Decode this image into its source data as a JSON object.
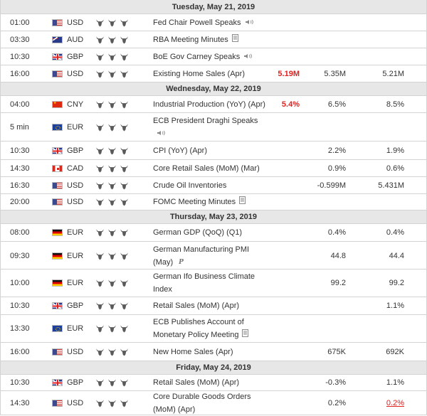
{
  "colors": {
    "up": "#2a9a24",
    "down": "#e0201e",
    "bull_on": "#5a5a5a",
    "bull_off": "#a8a8a8"
  },
  "days": [
    {
      "label": "Tuesday, May 21, 2019",
      "events": [
        {
          "time": "01:00",
          "flag": "us",
          "currency": "USD",
          "bulls": 3,
          "event": "Fed Chair Powell Speaks",
          "icon": "speaker-icon",
          "actual": "",
          "forecast": "",
          "previous": ""
        },
        {
          "time": "03:30",
          "flag": "au",
          "currency": "AUD",
          "bulls": 3,
          "event": "RBA Meeting Minutes",
          "icon": "document-icon",
          "actual": "",
          "forecast": "",
          "previous": ""
        },
        {
          "time": "10:30",
          "flag": "gb",
          "currency": "GBP",
          "bulls": 3,
          "event": "BoE Gov Carney Speaks",
          "icon": "speaker-icon",
          "actual": "",
          "forecast": "",
          "previous": ""
        },
        {
          "time": "16:00",
          "flag": "us",
          "currency": "USD",
          "bulls": 3,
          "event": "Existing Home Sales (Apr)",
          "icon": "",
          "actual": "5.19M",
          "actual_dir": "down",
          "forecast": "5.35M",
          "previous": "5.21M"
        }
      ]
    },
    {
      "label": "Wednesday, May 22, 2019",
      "events": [
        {
          "time": "04:00",
          "flag": "cn",
          "currency": "CNY",
          "bulls": 3,
          "event": "Industrial Production (YoY) (Apr)",
          "icon": "",
          "actual": "5.4%",
          "actual_dir": "down",
          "forecast": "6.5%",
          "previous": "8.5%"
        },
        {
          "time": "5 min",
          "flag": "eu",
          "currency": "EUR",
          "bulls": 3,
          "event": "ECB President Draghi Speaks",
          "icon": "speaker-icon",
          "actual": "",
          "forecast": "",
          "previous": ""
        },
        {
          "time": "10:30",
          "flag": "gb",
          "currency": "GBP",
          "bulls": 3,
          "event": "CPI (YoY) (Apr)",
          "icon": "",
          "actual": "",
          "forecast": "2.2%",
          "previous": "1.9%"
        },
        {
          "time": "14:30",
          "flag": "ca",
          "currency": "CAD",
          "bulls": 3,
          "event": "Core Retail Sales (MoM) (Mar)",
          "icon": "",
          "actual": "",
          "forecast": "0.9%",
          "previous": "0.6%"
        },
        {
          "time": "16:30",
          "flag": "us",
          "currency": "USD",
          "bulls": 3,
          "event": "Crude Oil Inventories",
          "icon": "",
          "actual": "",
          "forecast": "-0.599M",
          "previous": "5.431M"
        },
        {
          "time": "20:00",
          "flag": "us",
          "currency": "USD",
          "bulls": 3,
          "event": "FOMC Meeting Minutes",
          "icon": "document-icon",
          "actual": "",
          "forecast": "",
          "previous": ""
        }
      ]
    },
    {
      "label": "Thursday, May 23, 2019",
      "events": [
        {
          "time": "08:00",
          "flag": "de",
          "currency": "EUR",
          "bulls": 3,
          "event": "German GDP (QoQ) (Q1)",
          "icon": "",
          "actual": "",
          "forecast": "0.4%",
          "previous": "0.4%"
        },
        {
          "time": "09:30",
          "flag": "de",
          "currency": "EUR",
          "bulls": 3,
          "event": "German Manufacturing PMI (May)",
          "icon": "preliminary-icon",
          "icon_text": "P",
          "actual": "",
          "forecast": "44.8",
          "previous": "44.4"
        },
        {
          "time": "10:00",
          "flag": "de",
          "currency": "EUR",
          "bulls": 3,
          "event": "German Ifo Business Climate Index",
          "icon": "",
          "actual": "",
          "forecast": "99.2",
          "previous": "99.2"
        },
        {
          "time": "10:30",
          "flag": "gb",
          "currency": "GBP",
          "bulls": 3,
          "event": "Retail Sales (MoM) (Apr)",
          "icon": "",
          "actual": "",
          "forecast": "",
          "previous": "1.1%"
        },
        {
          "time": "13:30",
          "flag": "eu",
          "currency": "EUR",
          "bulls": 3,
          "event": "ECB Publishes Account of Monetary Policy Meeting",
          "icon": "document-icon",
          "actual": "",
          "forecast": "",
          "previous": ""
        },
        {
          "time": "16:00",
          "flag": "us",
          "currency": "USD",
          "bulls": 3,
          "event": "New Home Sales (Apr)",
          "icon": "",
          "actual": "",
          "forecast": "675K",
          "previous": "692K"
        }
      ]
    },
    {
      "label": "Friday, May 24, 2019",
      "events": [
        {
          "time": "10:30",
          "flag": "gb",
          "currency": "GBP",
          "bulls": 3,
          "event": "Retail Sales (MoM) (Apr)",
          "icon": "",
          "actual": "",
          "forecast": "-0.3%",
          "previous": "1.1%"
        },
        {
          "time": "14:30",
          "flag": "us",
          "currency": "USD",
          "bulls": 3,
          "event": "Core Durable Goods Orders (MoM) (Apr)",
          "icon": "",
          "actual": "",
          "forecast": "0.2%",
          "previous": "0.2%",
          "previous_dir": "down"
        }
      ]
    }
  ]
}
